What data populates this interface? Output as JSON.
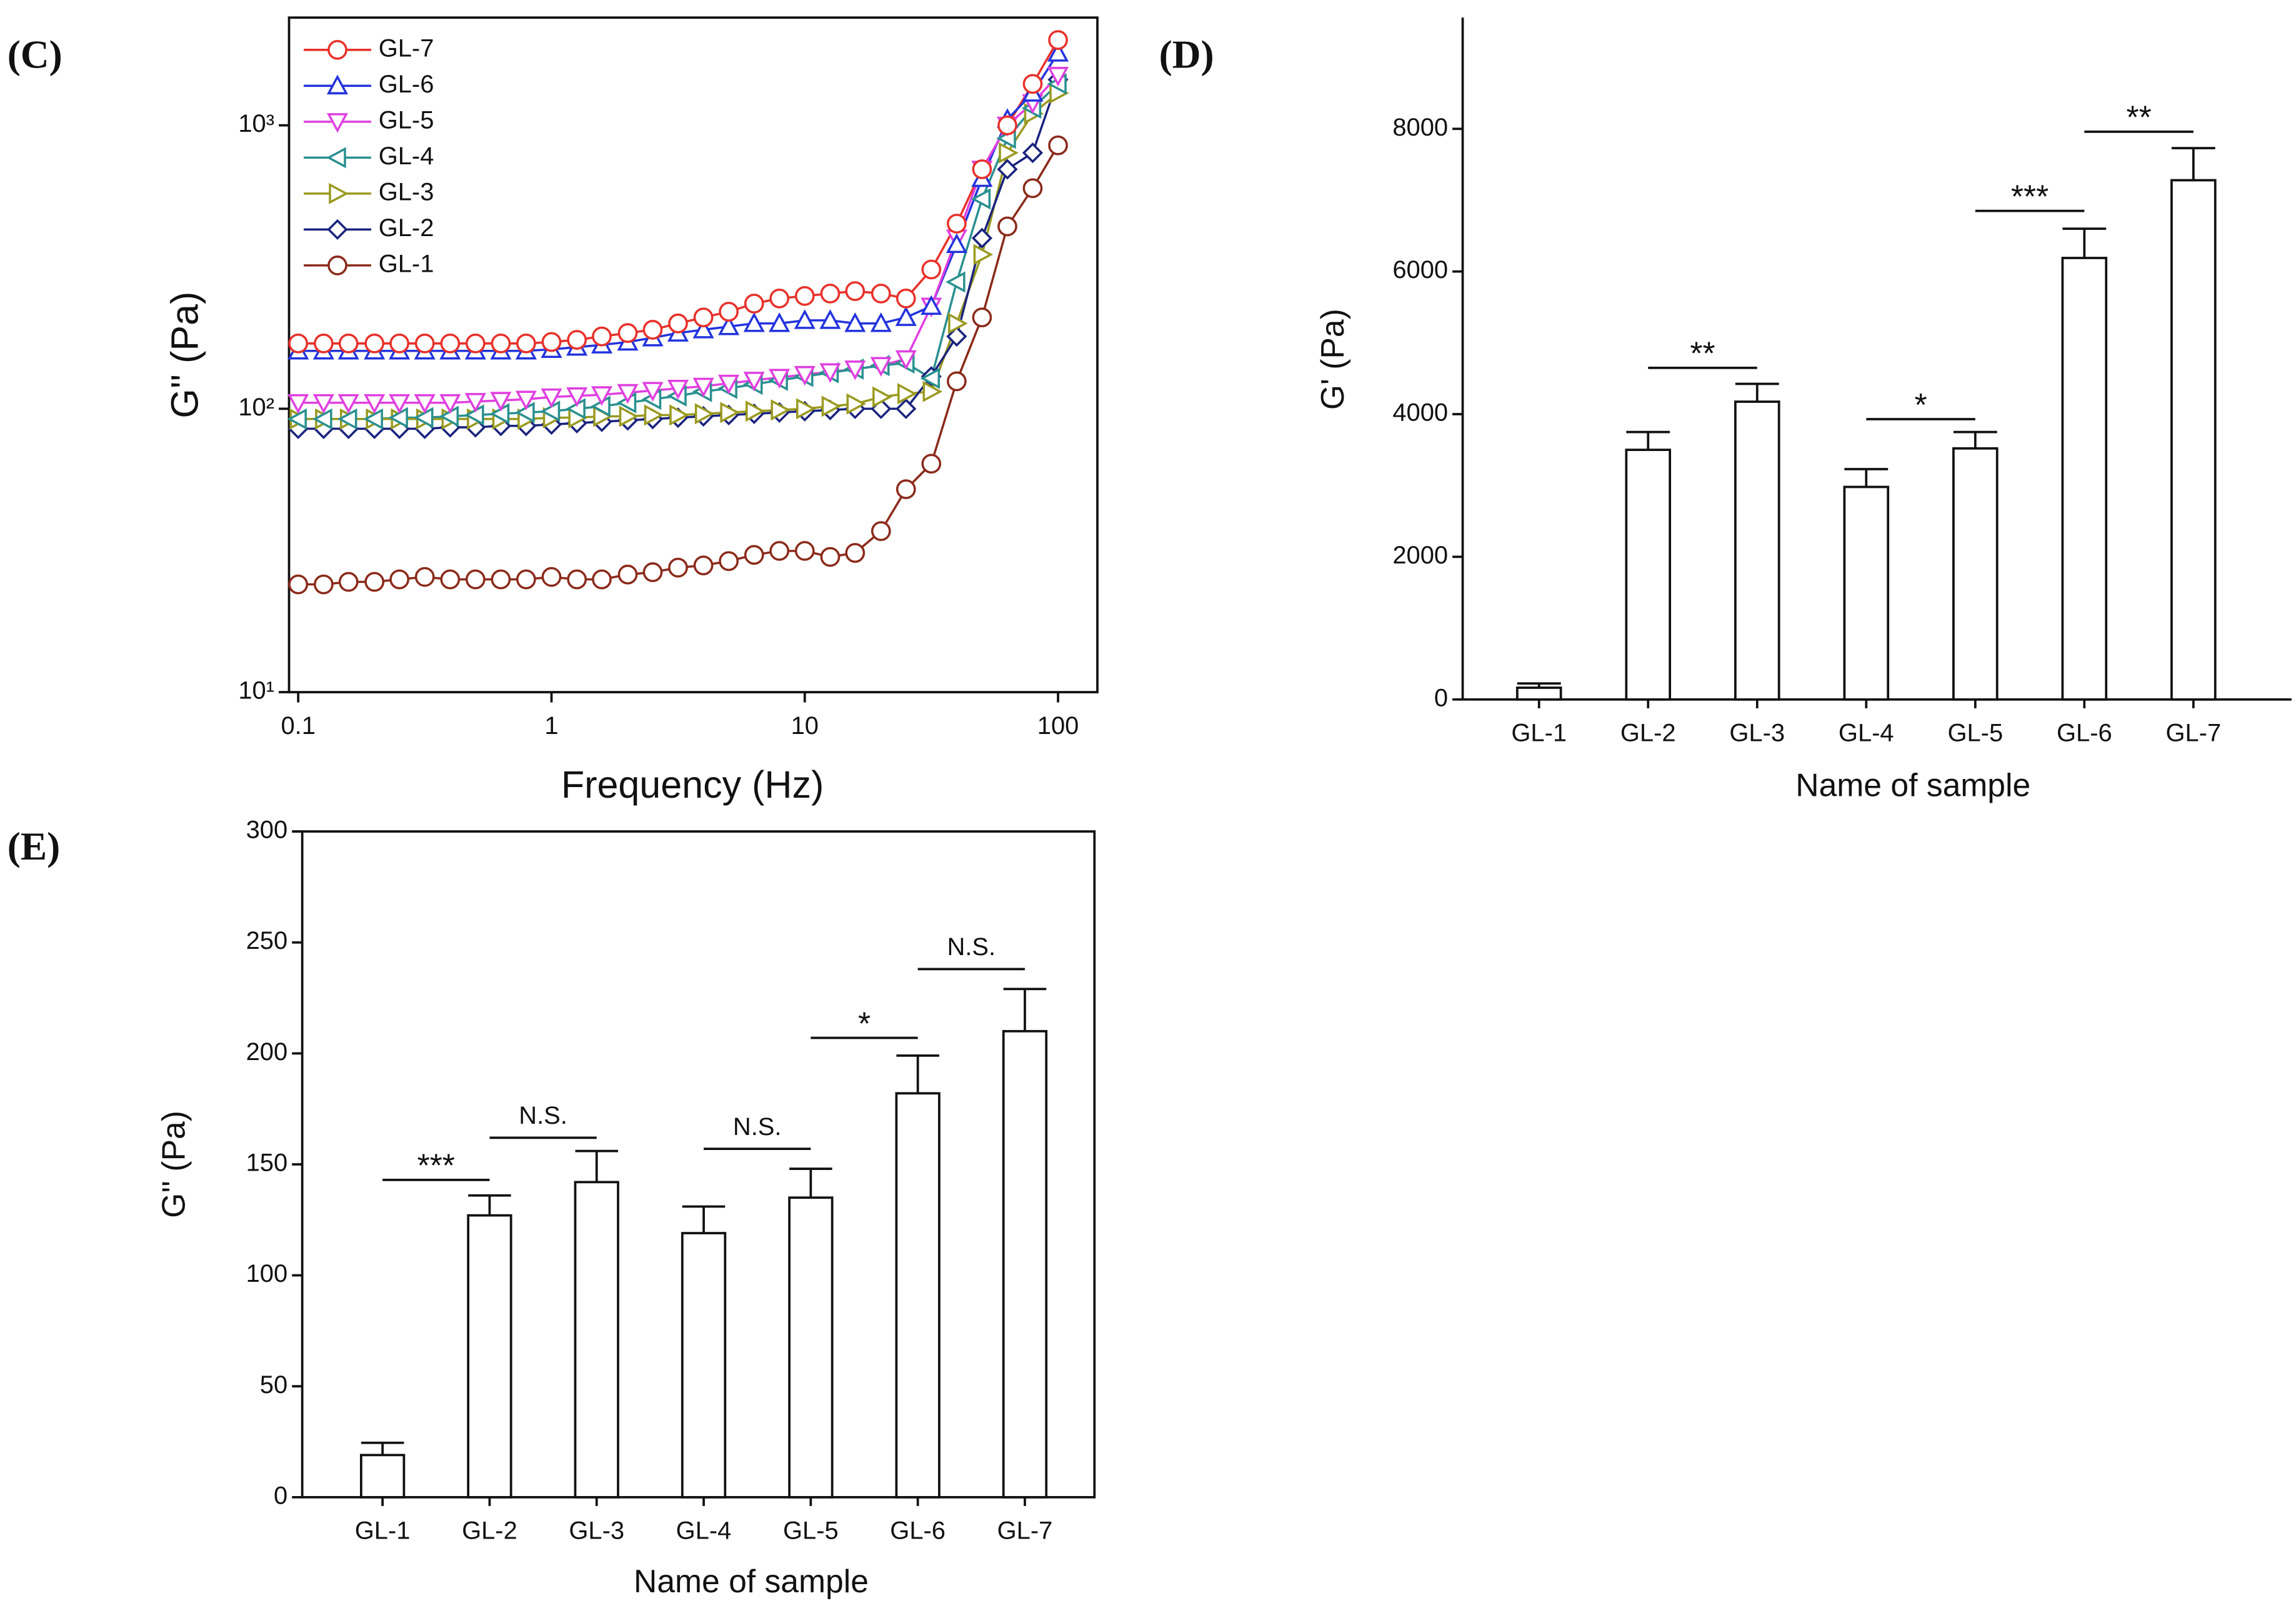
{
  "chart_data": [
    {
      "type": "line",
      "panel_label": "(C)",
      "xlabel": "Frequency (Hz)",
      "ylabel": "G'' (Pa)",
      "xscale": "log",
      "yscale": "log",
      "xlim": [
        0.092,
        143
      ],
      "ylim": [
        10,
        2400
      ],
      "xticks": [
        0.1,
        1,
        10,
        100
      ],
      "yticks": [
        {
          "value": 10,
          "label": "10¹"
        },
        {
          "value": 100,
          "label": "10²"
        },
        {
          "value": 1000,
          "label": "10³"
        }
      ],
      "legend": "upper left",
      "x": [
        0.1,
        0.126,
        0.158,
        0.2,
        0.251,
        0.316,
        0.398,
        0.501,
        0.631,
        0.794,
        1,
        1.26,
        1.58,
        2,
        2.51,
        3.16,
        3.98,
        5.01,
        6.31,
        7.94,
        10,
        12.6,
        15.8,
        20,
        25.1,
        31.6,
        39.8,
        50.1,
        63.1,
        79.4,
        100
      ],
      "series": [
        {
          "name": "GL-7",
          "color": "#e8312a",
          "marker": "circle",
          "values": [
            170,
            170,
            170,
            170,
            170,
            170,
            170,
            170,
            170,
            170,
            172,
            175,
            180,
            185,
            190,
            200,
            210,
            220,
            235,
            245,
            250,
            255,
            260,
            255,
            245,
            310,
            450,
            700,
            1000,
            1400,
            2000
          ]
        },
        {
          "name": "GL-6",
          "color": "#2233dd",
          "marker": "triangle-up",
          "values": [
            160,
            160,
            160,
            160,
            160,
            160,
            160,
            160,
            160,
            160,
            162,
            165,
            168,
            172,
            178,
            185,
            190,
            195,
            200,
            200,
            205,
            205,
            200,
            200,
            210,
            230,
            380,
            650,
            1050,
            1300,
            1800
          ]
        },
        {
          "name": "GL-5",
          "color": "#e040e0",
          "marker": "triangle-down",
          "values": [
            105,
            105,
            105,
            105,
            105,
            105,
            105,
            106,
            107,
            108,
            110,
            111,
            112,
            114,
            116,
            118,
            120,
            123,
            126,
            129,
            132,
            135,
            138,
            142,
            150,
            230,
            400,
            700,
            1000,
            1200,
            1500
          ]
        },
        {
          "name": "GL-4",
          "color": "#2a9090",
          "marker": "triangle-left",
          "values": [
            92,
            92,
            92,
            92,
            93,
            93,
            94,
            95,
            96,
            97,
            98,
            100,
            102,
            105,
            108,
            111,
            115,
            118,
            122,
            126,
            130,
            134,
            138,
            142,
            145,
            128,
            280,
            550,
            900,
            1150,
            1400
          ]
        },
        {
          "name": "GL-3",
          "color": "#9a9a20",
          "marker": "triangle-right",
          "values": [
            92,
            92,
            92,
            92,
            92,
            92,
            92,
            92,
            92,
            92,
            93,
            93,
            94,
            94,
            95,
            95,
            96,
            97,
            98,
            99,
            100,
            102,
            104,
            110,
            113,
            115,
            200,
            350,
            800,
            1100,
            1300
          ]
        },
        {
          "name": "GL-2",
          "color": "#1a237e",
          "marker": "diamond",
          "values": [
            85,
            85,
            85,
            85,
            85,
            85,
            86,
            86,
            87,
            87,
            88,
            89,
            90,
            91,
            92,
            93,
            94,
            95,
            96,
            97,
            98,
            99,
            100,
            100,
            100,
            130,
            180,
            400,
            700,
            800,
            1450
          ]
        },
        {
          "name": "GL-1",
          "color": "#8b2a1a",
          "marker": "circle",
          "values": [
            24,
            24,
            24.5,
            24.5,
            25,
            25.5,
            25,
            25,
            25,
            25,
            25.5,
            25,
            25,
            26,
            26.5,
            27.5,
            28,
            29,
            30.5,
            31.5,
            31.5,
            30,
            31,
            37,
            52,
            64,
            125,
            210,
            440,
            600,
            850
          ]
        }
      ]
    },
    {
      "type": "bar",
      "panel_label": "(D)",
      "xlabel": "Name of sample",
      "ylabel": "G' (Pa)",
      "categories": [
        "GL-1",
        "GL-2",
        "GL-3",
        "GL-4",
        "GL-5",
        "GL-6",
        "GL-7"
      ],
      "values": [
        165,
        3500,
        4175,
        2980,
        3520,
        6190,
        7280
      ],
      "errors": [
        60,
        250,
        250,
        250,
        230,
        410,
        450
      ],
      "color": "#ffffff",
      "ylim": [
        0,
        9560
      ],
      "yticks": [
        0,
        2000,
        4000,
        6000,
        8000
      ],
      "annotations": [
        {
          "from": "GL-2",
          "to": "GL-3",
          "y": 4650,
          "label": "**"
        },
        {
          "from": "GL-4",
          "to": "GL-5",
          "y": 3930,
          "label": "*"
        },
        {
          "from": "GL-5",
          "to": "GL-6",
          "y": 6850,
          "label": "***"
        },
        {
          "from": "GL-6",
          "to": "GL-7",
          "y": 7960,
          "label": "**"
        }
      ]
    },
    {
      "type": "bar",
      "panel_label": "(E)",
      "xlabel": "Name of sample",
      "ylabel": "G'' (Pa)",
      "categories": [
        "GL-1",
        "GL-2",
        "GL-3",
        "GL-4",
        "GL-5",
        "GL-6",
        "GL-7"
      ],
      "values": [
        19,
        127,
        142,
        119,
        135,
        182,
        210
      ],
      "errors": [
        5.5,
        9,
        14,
        12,
        13,
        17,
        19
      ],
      "color": "#ffffff",
      "ylim": [
        0,
        300
      ],
      "yticks": [
        0,
        50,
        100,
        150,
        200,
        250,
        300
      ],
      "annotations": [
        {
          "from": "GL-1",
          "to": "GL-2",
          "y": 143,
          "label": "***"
        },
        {
          "from": "GL-2",
          "to": "GL-3",
          "y": 162,
          "label": "N.S."
        },
        {
          "from": "GL-4",
          "to": "GL-5",
          "y": 157,
          "label": "N.S."
        },
        {
          "from": "GL-5",
          "to": "GL-6",
          "y": 207,
          "label": "*"
        },
        {
          "from": "GL-6",
          "to": "GL-7",
          "y": 238,
          "label": "N.S."
        }
      ]
    }
  ]
}
